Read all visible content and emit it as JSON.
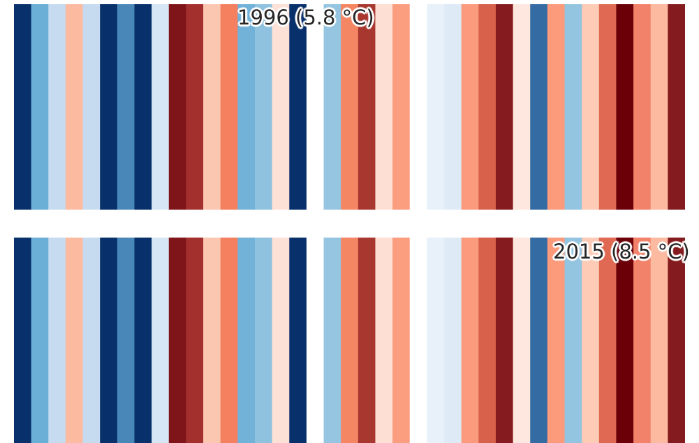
{
  "chart_data": [
    {
      "type": "heatmap",
      "variant": "warming-stripes",
      "stripe_colors": [
        "#08306b",
        "#6baed6",
        "#c6dbef",
        "#fcbba1",
        "#c6dbef",
        "#08306b",
        "#4a87b9",
        "#08306b",
        "#d6e6f4",
        "#7f1419",
        "#a3302c",
        "#fcc7b1",
        "#f4805f",
        "#72b1d8",
        "#8fc2de",
        "#fde0d6",
        "#08306b",
        "#ffffff",
        "#95c5e0",
        "#f48664",
        "#a8382f",
        "#fedfd4",
        "#fb9e80",
        "#ffffff",
        "#e8f1fa",
        "#deebf7",
        "#fb9a7c",
        "#d8614b",
        "#851b1e",
        "#fee7df",
        "#356ba3",
        "#fc9a7c",
        "#93c4e0",
        "#fdcbb6",
        "#df6952",
        "#6c0009",
        "#f2826a",
        "#fcbaa1",
        "#841b1e"
      ],
      "annotation": {
        "label": "1996 (5.8 °C)",
        "year": 1996,
        "value_c": 5.8
      }
    },
    {
      "type": "heatmap",
      "variant": "warming-stripes",
      "stripe_colors": [
        "#08306b",
        "#6baed6",
        "#c6dbef",
        "#fcbba1",
        "#c6dbef",
        "#08306b",
        "#4a87b9",
        "#08306b",
        "#d6e6f4",
        "#7f1419",
        "#a3302c",
        "#fcc7b1",
        "#f4805f",
        "#72b1d8",
        "#8fc2de",
        "#fde0d6",
        "#08306b",
        "#ffffff",
        "#95c5e0",
        "#f48664",
        "#a8382f",
        "#fedfd4",
        "#fb9e80",
        "#ffffff",
        "#e8f1fa",
        "#deebf7",
        "#fb9a7c",
        "#d8614b",
        "#851b1e",
        "#fee7df",
        "#356ba3",
        "#fc9a7c",
        "#93c4e0",
        "#fdcbb6",
        "#df6952",
        "#6c0009",
        "#f2826a",
        "#fcbaa1",
        "#841b1e"
      ],
      "annotation": {
        "label": "2015 (8.5 °C)",
        "year": 2015,
        "value_c": 8.5
      }
    }
  ]
}
